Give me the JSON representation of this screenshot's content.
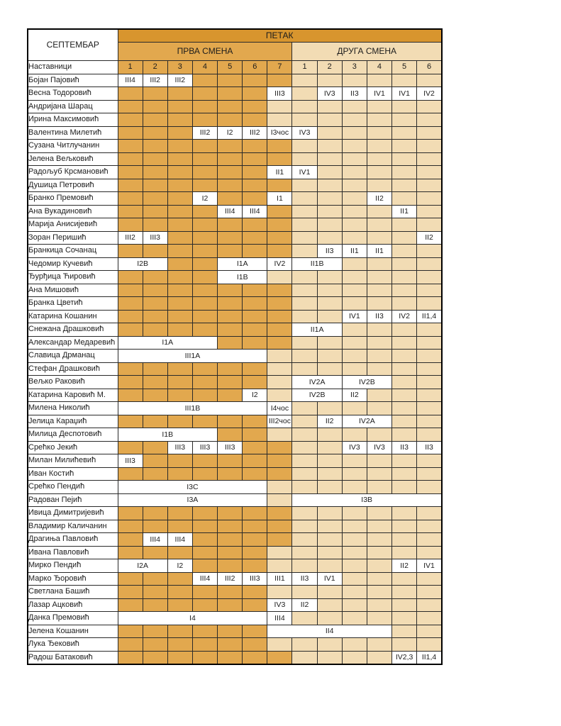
{
  "header": {
    "month": "СЕПТЕМБАР",
    "day": "ПЕТАК",
    "shift1_label": "ПРВА СМЕНА",
    "shift2_label": "ДРУГА СМЕНА",
    "teachers_label": "Наставници",
    "shift1_periods": [
      "1",
      "2",
      "3",
      "4",
      "5",
      "6",
      "7"
    ],
    "shift2_periods": [
      "1",
      "2",
      "3",
      "4",
      "5",
      "6"
    ]
  },
  "colors": {
    "day_header": "#d8952e",
    "first_shift": "#e2a84e",
    "second_shift": "#f2dcb4",
    "filled_cell": "#ffffff",
    "grid_line": "#2a2a2a"
  },
  "rows": [
    {
      "name": "Бојан Пајовић",
      "boxes": [
        {
          "c": 1,
          "v": "III4"
        },
        {
          "c": 2,
          "v": "III2"
        },
        {
          "c": 3,
          "v": "III2"
        }
      ]
    },
    {
      "name": "Весна Тодоровић",
      "boxes": [
        {
          "c": 7,
          "v": "III3"
        },
        {
          "c": 9,
          "v": "IV3"
        },
        {
          "c": 10,
          "v": "II3"
        },
        {
          "c": 11,
          "v": "IV1"
        },
        {
          "c": 12,
          "v": "IV1"
        },
        {
          "c": 13,
          "v": "IV2"
        }
      ]
    },
    {
      "name": "Андријана Шарац",
      "boxes": [],
      "light7": true
    },
    {
      "name": "Ирина Максимовић",
      "boxes": [],
      "light7": true
    },
    {
      "name": "Валентина Милетић",
      "boxes": [
        {
          "c": 4,
          "v": "III2"
        },
        {
          "c": 5,
          "v": "I2"
        },
        {
          "c": 6,
          "v": "III2"
        },
        {
          "c": 7,
          "v": "I3чос"
        },
        {
          "c": 8,
          "v": "IV3"
        }
      ]
    },
    {
      "name": "Сузана Читлучанин",
      "boxes": []
    },
    {
      "name": "Јелена Вељковић",
      "boxes": []
    },
    {
      "name": "Радољуб Крсмановић",
      "boxes": [
        {
          "c": 7,
          "v": "II1"
        },
        {
          "c": 8,
          "v": "IV1"
        }
      ]
    },
    {
      "name": "Душица Петровић",
      "boxes": []
    },
    {
      "name": "Бранко Премовић",
      "boxes": [
        {
          "c": 4,
          "v": "I2"
        },
        {
          "c": 7,
          "v": "I1"
        },
        {
          "c": 11,
          "v": "II2"
        }
      ]
    },
    {
      "name": "Ана Вукадиновић",
      "boxes": [
        {
          "c": 5,
          "v": "III4"
        },
        {
          "c": 6,
          "v": "III4"
        },
        {
          "c": 12,
          "v": "II1"
        }
      ]
    },
    {
      "name": "Марија Анисијевић",
      "boxes": []
    },
    {
      "name": "Зоран Перишић",
      "boxes": [
        {
          "c": 1,
          "v": "III2"
        },
        {
          "c": 2,
          "v": "III3"
        },
        {
          "c": 13,
          "v": "II2"
        }
      ]
    },
    {
      "name": "Бранкица Сочанац",
      "boxes": [
        {
          "c": 9,
          "v": "II3"
        },
        {
          "c": 10,
          "v": "II1"
        },
        {
          "c": 11,
          "v": "II1"
        }
      ]
    },
    {
      "name": "Чедомир Кучевић",
      "boxes": [
        {
          "c": 1,
          "span": 2,
          "v": "I2B"
        },
        {
          "c": 5,
          "span": 2,
          "v": "I1A"
        },
        {
          "c": 7,
          "v": "IV2"
        },
        {
          "c": 8,
          "span": 2,
          "v": "II1B"
        }
      ]
    },
    {
      "name": "Ђурђица Ћировић",
      "boxes": [
        {
          "c": 5,
          "span": 2,
          "v": "I1B"
        }
      ],
      "light7": true
    },
    {
      "name": "Ана Мишовић",
      "boxes": []
    },
    {
      "name": "Бранка Цветић",
      "boxes": []
    },
    {
      "name": "Катарина Кошанин",
      "boxes": [
        {
          "c": 10,
          "v": "IV1"
        },
        {
          "c": 11,
          "v": "II3"
        },
        {
          "c": 12,
          "v": "IV2"
        },
        {
          "c": 13,
          "v": "II1,4"
        }
      ]
    },
    {
      "name": "Снежана Драшковић",
      "boxes": [
        {
          "c": 8,
          "span": 2,
          "v": "II1A"
        }
      ]
    },
    {
      "name": "Александар Медаревић",
      "boxes": [
        {
          "c": 1,
          "span": 4,
          "v": "I1A"
        }
      ]
    },
    {
      "name": "Славица Дрманац",
      "boxes": [
        {
          "c": 1,
          "span": 6,
          "v": "III1A"
        }
      ],
      "light7": true
    },
    {
      "name": "Стефан Драшковић",
      "boxes": [],
      "light7": true
    },
    {
      "name": "Вељко Раковић",
      "boxes": [
        {
          "c": 8,
          "span": 2,
          "v": "IV2A"
        },
        {
          "c": 10,
          "span": 2,
          "v": "IV2B"
        }
      ],
      "light7": true
    },
    {
      "name": "Катарина Каровић М.",
      "boxes": [
        {
          "c": 6,
          "v": "I2"
        },
        {
          "c": 8,
          "span": 2,
          "v": "IV2B"
        },
        {
          "c": 10,
          "v": "II2"
        }
      ],
      "light7": true
    },
    {
      "name": "Милена Николић",
      "boxes": [
        {
          "c": 1,
          "span": 6,
          "v": "III1B"
        },
        {
          "c": 7,
          "v": "I4чос"
        }
      ]
    },
    {
      "name": "Јелица Караџић",
      "boxes": [
        {
          "c": 7,
          "v": "III2чос"
        },
        {
          "c": 9,
          "v": "II2"
        },
        {
          "c": 10,
          "span": 2,
          "v": "IV2A"
        }
      ]
    },
    {
      "name": "Милица Деспотовић",
      "boxes": [
        {
          "c": 1,
          "span": 4,
          "v": "I1B"
        }
      ],
      "light7": true
    },
    {
      "name": "Срећко Јекић",
      "boxes": [
        {
          "c": 3,
          "v": "III3"
        },
        {
          "c": 4,
          "v": "III3"
        },
        {
          "c": 5,
          "v": "III3"
        },
        {
          "c": 10,
          "v": "IV3"
        },
        {
          "c": 11,
          "v": "IV3"
        },
        {
          "c": 12,
          "v": "II3"
        },
        {
          "c": 13,
          "v": "II3"
        }
      ]
    },
    {
      "name": "Милан Милићевић",
      "boxes": [
        {
          "c": 1,
          "v": "III3"
        }
      ]
    },
    {
      "name": "Иван Костић",
      "boxes": []
    },
    {
      "name": "Срећко Пендић",
      "boxes": [
        {
          "c": 1,
          "span": 6,
          "v": "I3C"
        }
      ],
      "light7": true
    },
    {
      "name": "Радован Пејић",
      "boxes": [
        {
          "c": 1,
          "span": 6,
          "v": "I3A"
        },
        {
          "c": 8,
          "span": 6,
          "v": "I3B"
        }
      ],
      "light7": true
    },
    {
      "name": "Ивица Димитријевић",
      "boxes": []
    },
    {
      "name": "Владимир Каличанин",
      "boxes": []
    },
    {
      "name": "Драгиња Павловић",
      "boxes": [
        {
          "c": 2,
          "v": "III4"
        },
        {
          "c": 3,
          "v": "III4"
        }
      ]
    },
    {
      "name": "Ивана Павловић",
      "boxes": [],
      "light7": true
    },
    {
      "name": "Мирко Пендић",
      "boxes": [
        {
          "c": 1,
          "span": 2,
          "v": "I2A"
        },
        {
          "c": 3,
          "v": "I2"
        },
        {
          "c": 12,
          "v": "II2"
        },
        {
          "c": 13,
          "v": "IV1"
        }
      ],
      "light7": true
    },
    {
      "name": "Марко Ђоровић",
      "boxes": [
        {
          "c": 4,
          "v": "III4"
        },
        {
          "c": 5,
          "v": "III2"
        },
        {
          "c": 6,
          "v": "III3"
        },
        {
          "c": 7,
          "v": "III1"
        },
        {
          "c": 8,
          "v": "II3"
        },
        {
          "c": 9,
          "v": "IV1"
        }
      ]
    },
    {
      "name": "Светлана Башић",
      "boxes": [],
      "light7": true
    },
    {
      "name": "Лазар Ацковић",
      "boxes": [
        {
          "c": 7,
          "v": "IV3"
        },
        {
          "c": 8,
          "v": "II2"
        }
      ]
    },
    {
      "name": "Данка Премовић",
      "boxes": [
        {
          "c": 1,
          "span": 6,
          "v": "I4"
        },
        {
          "c": 7,
          "v": "III4"
        }
      ]
    },
    {
      "name": "Јелена Кошанин",
      "boxes": [
        {
          "c": 7,
          "span": 5,
          "v": "II4"
        }
      ]
    },
    {
      "name": "Лука Ђековић",
      "boxes": [],
      "light7": true
    },
    {
      "name": "Радош Батаковић",
      "boxes": [
        {
          "c": 12,
          "v": "IV2,3"
        },
        {
          "c": 13,
          "v": "II1,4"
        }
      ]
    }
  ]
}
